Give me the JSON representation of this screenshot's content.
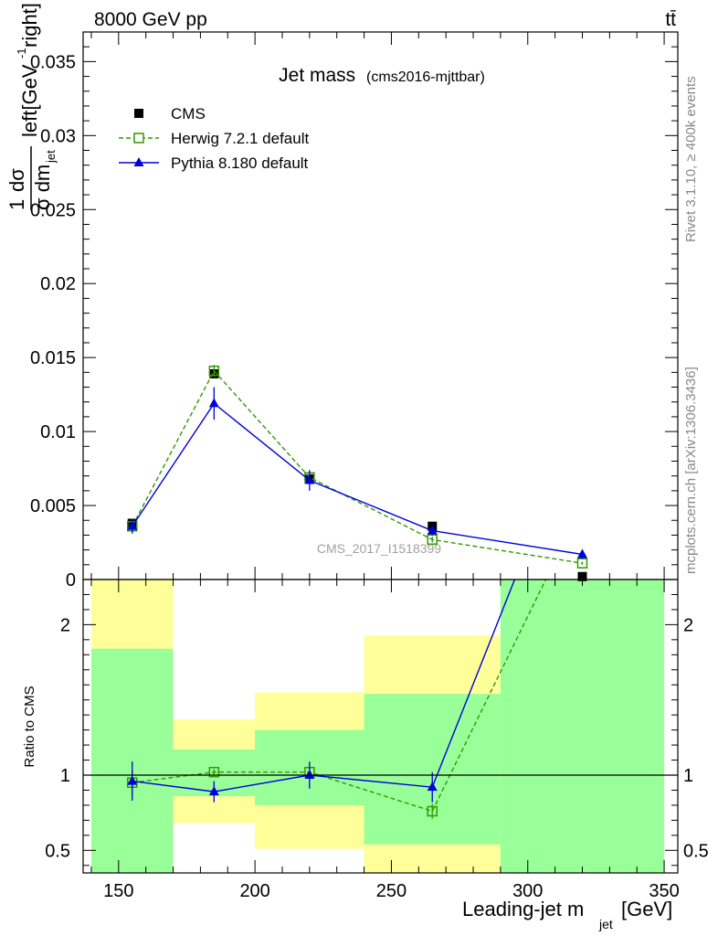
{
  "header": {
    "left": "8000 GeV pp",
    "right": "tt̄"
  },
  "side_text": {
    "rivet": "Rivet 3.1.10, ≥ 400k events",
    "mcplots": "mcplots.cern.ch [arXiv:1306.3436]"
  },
  "chart_data": [
    {
      "panel": "main",
      "type": "line",
      "title": "Jet mass",
      "subtitle": "(cms2016-mjttbar)",
      "watermark": "CMS_2017_I1518399",
      "ylabel": "1 dσ / σ dm_jet left[GeV^-1 right]",
      "xlabel": "Leading-jet m_jet [GeV]",
      "xlim": [
        137,
        355
      ],
      "ylim": [
        0,
        0.037
      ],
      "y_ticks": [
        "0",
        "0.005",
        "0.01",
        "0.015",
        "0.02",
        "0.025",
        "0.03",
        "0.035"
      ],
      "y_tick_values": [
        0,
        0.005,
        0.01,
        0.015,
        0.02,
        0.025,
        0.03,
        0.035
      ],
      "legend": {
        "position": "top-left",
        "entries": [
          "CMS",
          "Herwig 7.2.1 default",
          "Pythia 8.180 default"
        ]
      },
      "series": [
        {
          "name": "CMS",
          "style": "markers",
          "color": "#000000",
          "x": [
            155,
            185,
            220,
            265,
            320
          ],
          "y": [
            0.0038,
            0.0139,
            0.0068,
            0.0036,
            0.0002
          ],
          "yerr": [
            0.0003,
            0.0003,
            0.0003,
            0.0002,
            0.0001
          ]
        },
        {
          "name": "Herwig 7.2.1 default",
          "style": "dashed-open-square",
          "color": "#339900",
          "x": [
            155,
            185,
            220,
            265,
            320
          ],
          "y": [
            0.0036,
            0.0141,
            0.0069,
            0.0027,
            0.0011
          ],
          "yerr": [
            0.0003,
            0.0004,
            0.0002,
            0.0002,
            0.0001
          ]
        },
        {
          "name": "Pythia 8.180 default",
          "style": "solid-triangle",
          "color": "#0000dd",
          "x": [
            155,
            185,
            220,
            265,
            320
          ],
          "y": [
            0.0036,
            0.0119,
            0.0067,
            0.0033,
            0.0017
          ],
          "yerr": [
            0.0005,
            0.0011,
            0.0007,
            0.0003,
            0.0003
          ]
        }
      ]
    },
    {
      "panel": "ratio",
      "type": "line",
      "ylabel": "Ratio to CMS",
      "xlabel": "Leading-jet m_jet [GeV]",
      "xlim": [
        137,
        355
      ],
      "ylim": [
        0.35,
        2.3
      ],
      "y_ticks": [
        "0.5",
        "1",
        "2"
      ],
      "y_tick_values": [
        0.5,
        1,
        2
      ],
      "x_ticks": [
        "150",
        "200",
        "250",
        "300",
        "350"
      ],
      "x_tick_values": [
        150,
        200,
        250,
        300,
        350
      ],
      "bands": [
        {
          "x0": 140,
          "x1": 170,
          "green": [
            0.35,
            1.84
          ],
          "yellow": [
            0.35,
            2.3
          ]
        },
        {
          "x0": 170,
          "x1": 200,
          "green": [
            0.86,
            1.17
          ],
          "yellow": [
            0.68,
            1.37
          ]
        },
        {
          "x0": 200,
          "x1": 240,
          "green": [
            0.8,
            1.3
          ],
          "yellow": [
            0.51,
            1.55
          ]
        },
        {
          "x0": 240,
          "x1": 290,
          "green": [
            0.54,
            1.54
          ],
          "yellow": [
            0.35,
            1.93
          ]
        },
        {
          "x0": 290,
          "x1": 350,
          "green": [
            0.35,
            2.3
          ],
          "yellow": [
            0.35,
            2.3
          ]
        }
      ],
      "series": [
        {
          "name": "Herwig 7.2.1 default",
          "color": "#339900",
          "x": [
            155,
            185,
            220,
            265,
            306.6
          ],
          "y": [
            0.95,
            1.02,
            1.02,
            0.76,
            2.3
          ],
          "yerr": [
            0.08,
            0.02,
            0.03,
            0.05,
            0
          ],
          "markers": [
            true,
            true,
            true,
            true,
            false
          ]
        },
        {
          "name": "Pythia 8.180 default",
          "color": "#0000dd",
          "x": [
            155,
            185,
            220,
            265,
            295.2
          ],
          "y": [
            0.96,
            0.89,
            1.0,
            0.92,
            2.3
          ],
          "yerr": [
            0.13,
            0.07,
            0.09,
            0.1,
            0
          ],
          "markers": [
            true,
            true,
            true,
            true,
            false
          ]
        }
      ]
    }
  ]
}
